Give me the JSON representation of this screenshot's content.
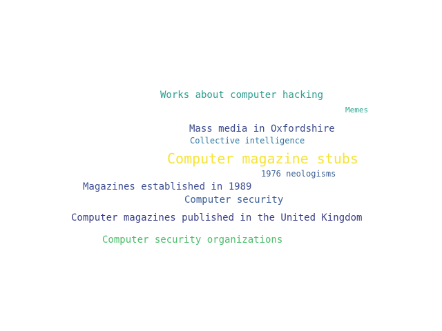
{
  "words": [
    {
      "text": "Works about computer hacking",
      "color": "#2a9d8f"
    },
    {
      "text": "Memes",
      "color": "#2aa58f"
    },
    {
      "text": "Mass media in Oxfordshire",
      "color": "#3b4a8a"
    },
    {
      "text": "Collective intelligence",
      "color": "#31789e"
    },
    {
      "text": "Computer magazine stubs",
      "color": "#f6e436"
    },
    {
      "text": "1976 neologisms",
      "color": "#3a5f92"
    },
    {
      "text": "Magazines established in 1989",
      "color": "#3f4f92"
    },
    {
      "text": "Computer security",
      "color": "#3b5d96"
    },
    {
      "text": "Computer magazines published in the United Kingdom",
      "color": "#3a3f86"
    },
    {
      "text": "Computer security organizations",
      "color": "#4cbd6a"
    }
  ]
}
